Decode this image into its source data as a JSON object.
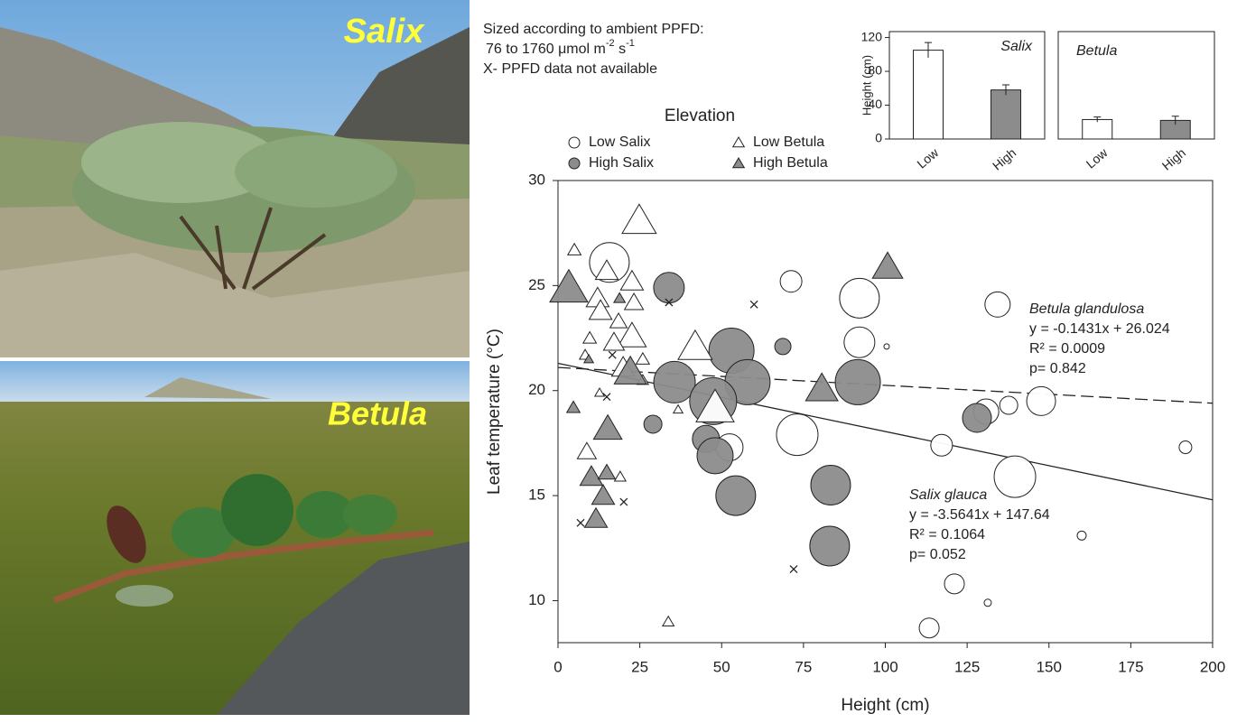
{
  "photos": {
    "labels": [
      "Salix",
      "Betula"
    ]
  },
  "chart_data": [
    {
      "type": "scatter",
      "note": {
        "lead": "Sized according to ambient PPFD:",
        "min": 76,
        "to": " to ",
        "max": 1760,
        "unit": " μmol m",
        "exp1": "-2",
        "unit2": " s",
        "exp2": "-1",
        "missing": "X- PPFD data not available"
      },
      "xlabel": "Height (cm)",
      "ylabel": "Leaf temperature (°C)",
      "xlim": [
        0,
        200
      ],
      "ylim": [
        8,
        30
      ],
      "xticks": [
        0,
        25,
        50,
        75,
        100,
        125,
        150,
        175,
        200
      ],
      "yticks": [
        10,
        15,
        20,
        25,
        30
      ],
      "legend_title": "Elevation",
      "series": [
        {
          "name": "Low Salix",
          "marker": "circle",
          "color": "#ffffff",
          "x": [
            15.7,
            71.2,
            92.1,
            134.3,
            92.1,
            100.4,
            147.6,
            137.7,
            130.8,
            73.1,
            52.4,
            117.2,
            139.6,
            160.0,
            191.7,
            121.1,
            131.3,
            113.4
          ],
          "y": [
            26.1,
            25.2,
            24.4,
            24.1,
            22.3,
            22.1,
            19.5,
            19.3,
            19.0,
            17.9,
            17.3,
            17.4,
            15.9,
            13.1,
            17.3,
            10.8,
            9.9,
            8.7
          ],
          "size": [
            1467,
            735,
            1467,
            881,
            1101,
            76,
            1028,
            588,
            881,
            1540,
            954,
            735,
            1540,
            222,
            369,
            662,
            149,
            662
          ]
        },
        {
          "name": "High Salix",
          "marker": "circle",
          "color": "#8c8c8c",
          "x": [
            33.9,
            53.0,
            68.7,
            35.6,
            57.9,
            91.6,
            47.4,
            29.0,
            45.2,
            48.0,
            128.0,
            54.3,
            83.3,
            83.0
          ],
          "y": [
            24.9,
            21.9,
            22.1,
            20.4,
            20.4,
            20.4,
            19.5,
            18.4,
            17.7,
            16.9,
            18.7,
            15.0,
            15.5,
            12.6
          ],
          "size": [
            1101,
            1686,
            515,
            1540,
            1686,
            1686,
            1760,
            588,
            954,
            1320,
            1028,
            1467,
            1467,
            1467
          ]
        },
        {
          "name": "Low Betula",
          "marker": "triangle",
          "color": "#ffffff",
          "x": [
            24.8,
            5.0,
            14.9,
            22.6,
            12.1,
            23.2,
            13.0,
            18.5,
            9.7,
            22.6,
            17.1,
            41.9,
            25.9,
            19.9,
            8.3,
            25.9,
            48.0,
            36.7,
            8.8,
            19.0,
            33.7,
            12.7
          ],
          "y": [
            28.1,
            26.7,
            25.7,
            25.2,
            24.4,
            24.2,
            23.8,
            23.3,
            22.5,
            22.6,
            22.3,
            22.1,
            21.5,
            21.1,
            21.7,
            20.5,
            19.2,
            19.1,
            17.1,
            15.9,
            9.0,
            19.9
          ],
          "size": [
            1174,
            369,
            735,
            735,
            735,
            588,
            735,
            515,
            369,
            954,
            662,
            1174,
            369,
            735,
            296,
            296,
            1320,
            222,
            588,
            296,
            296,
            222
          ]
        },
        {
          "name": "High Betula",
          "marker": "triangle",
          "color": "#8c8c8c",
          "x": [
            3.3,
            100.7,
            22.1,
            80.6,
            4.7,
            15.2,
            10.2,
            14.9,
            13.8,
            11.6,
            9.4,
            18.8
          ],
          "y": [
            24.9,
            25.9,
            20.9,
            20.1,
            19.2,
            18.2,
            15.9,
            16.1,
            15.0,
            13.9,
            21.5,
            24.4
          ],
          "size": [
            1320,
            1028,
            1101,
            1101,
            369,
            954,
            735,
            515,
            735,
            735,
            222,
            296
          ]
        }
      ],
      "unmeasured": {
        "marker": "x",
        "x": [
          33.9,
          59.9,
          14.9,
          20.1,
          6.9,
          72.0,
          16.6
        ],
        "y": [
          24.2,
          24.1,
          19.7,
          14.7,
          13.7,
          11.5,
          21.7
        ]
      },
      "trend_lines": [
        {
          "style": "dashed",
          "x": [
            0,
            200
          ],
          "y": [
            21.1,
            19.4
          ]
        },
        {
          "style": "solid",
          "x": [
            0,
            200
          ],
          "y": [
            21.3,
            14.8
          ]
        }
      ],
      "annotations": [
        {
          "lines": [
            "Betula glandulosa",
            "y = -0.1431x + 26.024",
            "R² = 0.0009",
            "p= 0.842"
          ]
        },
        {
          "lines": [
            "Salix glauca",
            "y = -3.5641x + 147.64",
            "R² = 0.1064",
            "p= 0.052"
          ]
        }
      ]
    },
    {
      "type": "bar",
      "title": "Salix",
      "ylabel": "Height (cm)",
      "categories": [
        "Low",
        "High"
      ],
      "values": [
        105,
        58
      ],
      "errors": [
        9,
        6
      ],
      "colors": [
        "#ffffff",
        "#8c8c8c"
      ],
      "ylim": [
        0,
        127
      ],
      "yticks": [
        0,
        40,
        80,
        120
      ]
    },
    {
      "type": "bar",
      "title": "Betula",
      "categories": [
        "Low",
        "High"
      ],
      "values": [
        23,
        22
      ],
      "errors": [
        3,
        5
      ],
      "colors": [
        "#ffffff",
        "#8c8c8c"
      ],
      "ylim": [
        0,
        127
      ]
    }
  ]
}
